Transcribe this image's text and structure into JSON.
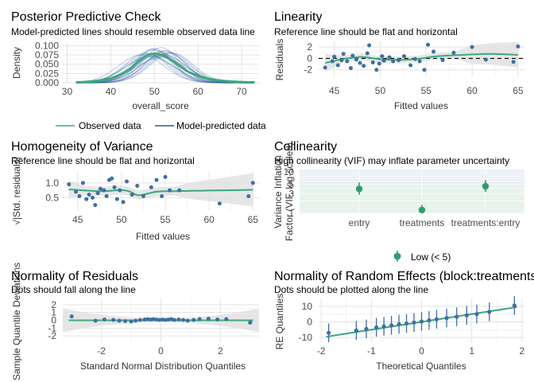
{
  "colors": {
    "observed": "#3aaa7c",
    "predicted": "#2c5aa0",
    "points": "#3f6f9f",
    "band": "#e0e0e0",
    "grid": "#ececec",
    "collin_bg": "#e7f3ec",
    "collin_low": "#2f9e6d"
  },
  "chart_data": [
    {
      "id": "ppc",
      "type": "line",
      "title": "Posterior Predictive Check",
      "subtitle": "Model-predicted lines should resemble observed data line",
      "xlabel": "overall_score",
      "ylabel": "Density",
      "xlim": [
        29,
        74
      ],
      "ylim": [
        0,
        0.105
      ],
      "xticks": [
        30,
        40,
        50,
        60,
        70
      ],
      "yticks": [
        0,
        0.025,
        0.05,
        0.075,
        0.1
      ],
      "ytick_labels": [
        "0.000",
        "0.025",
        "0.050",
        "0.075",
        "0.100"
      ],
      "legend": [
        "Observed data",
        "Model-predicted data"
      ],
      "observed": {
        "x": [
          32,
          36,
          40,
          44,
          46,
          48,
          50,
          52,
          54,
          56,
          58,
          62,
          66,
          70,
          73
        ],
        "y": [
          0.001,
          0.004,
          0.012,
          0.034,
          0.054,
          0.072,
          0.078,
          0.073,
          0.06,
          0.044,
          0.028,
          0.012,
          0.005,
          0.002,
          0.001
        ]
      },
      "predicted_means": [
        47,
        48,
        49,
        50,
        51,
        51.5,
        52,
        52.5,
        53,
        50.5,
        49.5,
        51,
        52,
        53.5,
        48.5,
        50,
        51.5,
        52.5,
        49,
        54
      ],
      "predicted_sd": [
        5.2,
        4.8,
        5.6,
        4.5,
        5.0,
        4.2,
        5.3,
        4.6,
        4.9,
        5.5,
        4.4,
        4.7,
        5.1,
        4.8,
        5.0,
        4.3,
        5.8,
        4.6,
        5.4,
        4.9
      ],
      "predicted_peak": [
        0.075,
        0.08,
        0.07,
        0.088,
        0.078,
        0.095,
        0.074,
        0.085,
        0.08,
        0.072,
        0.09,
        0.083,
        0.077,
        0.081,
        0.078,
        0.092,
        0.068,
        0.086,
        0.073,
        0.08
      ]
    },
    {
      "id": "linearity",
      "type": "scatter",
      "title": "Linearity",
      "subtitle": "Reference line should be flat and horizontal",
      "xlabel": "Fitted values",
      "ylabel": "Residuals",
      "xlim": [
        43.3,
        65.7
      ],
      "ylim": [
        -3.3,
        3
      ],
      "xticks": [
        45,
        50,
        55,
        60,
        65
      ],
      "yticks": [
        -2,
        0,
        2
      ],
      "points": [
        [
          44,
          -1.6
        ],
        [
          44.8,
          -0.5
        ],
        [
          45,
          0.3
        ],
        [
          45.4,
          -1.2
        ],
        [
          45.8,
          -0.3
        ],
        [
          46,
          0.8
        ],
        [
          46.4,
          -0.5
        ],
        [
          46.8,
          -1.7
        ],
        [
          47,
          0.5
        ],
        [
          47.4,
          -0.2
        ],
        [
          47.8,
          -0.8
        ],
        [
          48.2,
          -1.3
        ],
        [
          48.6,
          0.9
        ],
        [
          48.8,
          2.3
        ],
        [
          49.2,
          -0.7
        ],
        [
          49.6,
          -2.0
        ],
        [
          49.9,
          -0.9
        ],
        [
          50.2,
          0.4
        ],
        [
          50.4,
          -0.4
        ],
        [
          51,
          0.2
        ],
        [
          51.4,
          -0.5
        ],
        [
          52,
          -0.3
        ],
        [
          52.6,
          0.4
        ],
        [
          53.3,
          -1.2
        ],
        [
          53.8,
          -0.1
        ],
        [
          54.3,
          -0.5
        ],
        [
          54.8,
          -2.0
        ],
        [
          55.2,
          2.4
        ],
        [
          55.8,
          1.2
        ],
        [
          56.8,
          -0.3
        ],
        [
          58,
          1.0
        ],
        [
          60,
          2.0
        ],
        [
          61.5,
          -0.2
        ],
        [
          64.5,
          -0.6
        ],
        [
          65,
          2.1
        ]
      ],
      "smooth": {
        "x": [
          44,
          46,
          48,
          50,
          52,
          54,
          56,
          58,
          60,
          62,
          64,
          65
        ],
        "y": [
          -0.8,
          -0.1,
          0.25,
          -0.15,
          -0.25,
          -0.1,
          0.35,
          0.55,
          0.7,
          0.8,
          0.7,
          0.6
        ]
      }
    },
    {
      "id": "homogeneity",
      "type": "scatter",
      "title": "Homogeneity of Variance",
      "subtitle": "Reference line should be flat and horizontal",
      "xlabel": "Fitted values",
      "ylabel": "√|Std. residuals|",
      "xlim": [
        43.3,
        65.7
      ],
      "ylim": [
        0.05,
        1.4
      ],
      "xticks": [
        45,
        50,
        55,
        60,
        65
      ],
      "yticks": [
        0.5,
        1.0
      ],
      "ytick_labels": [
        "0.5",
        "1.0"
      ],
      "points": [
        [
          44,
          0.95
        ],
        [
          44.8,
          0.7
        ],
        [
          45.2,
          0.55
        ],
        [
          45.6,
          1.0
        ],
        [
          46,
          0.45
        ],
        [
          46.3,
          0.6
        ],
        [
          46.7,
          0.5
        ],
        [
          47,
          0.25
        ],
        [
          47.3,
          0.65
        ],
        [
          47.6,
          0.8
        ],
        [
          48,
          0.75
        ],
        [
          48.3,
          0.55
        ],
        [
          48.6,
          1.1
        ],
        [
          48.9,
          1.15
        ],
        [
          49.2,
          0.85
        ],
        [
          49.5,
          0.45
        ],
        [
          49.8,
          0.75
        ],
        [
          50.2,
          0.35
        ],
        [
          50.6,
          1.05
        ],
        [
          51.2,
          0.6
        ],
        [
          51.8,
          0.9
        ],
        [
          52.5,
          0.55
        ],
        [
          53.4,
          0.85
        ],
        [
          54,
          1.1
        ],
        [
          54.6,
          0.55
        ],
        [
          55,
          1.2
        ],
        [
          55.5,
          0.75
        ],
        [
          56.6,
          0.75
        ],
        [
          61.2,
          0.3
        ],
        [
          64.5,
          0.55
        ],
        [
          65,
          1.0
        ]
      ],
      "smooth": {
        "x": [
          44,
          46,
          48,
          50,
          51,
          52,
          54,
          56,
          58,
          60,
          62,
          64,
          65
        ],
        "y": [
          0.78,
          0.74,
          0.72,
          0.76,
          0.7,
          0.58,
          0.7,
          0.72,
          0.73,
          0.74,
          0.75,
          0.76,
          0.77
        ]
      }
    },
    {
      "id": "collinearity",
      "type": "scatter",
      "title": "Collinearity",
      "subtitle": "High collinearity (VIF) may inflate parameter uncertainty",
      "ylabel_line1": "Variance Inflation",
      "ylabel_line2": "Factor (VIF, log-scaled)",
      "categories": [
        "entry",
        "treatments",
        "treatments:entry"
      ],
      "vif": [
        3.9,
        1.2,
        4.5
      ],
      "ci_low": [
        2.8,
        1.0,
        3.3
      ],
      "ci_high": [
        5.6,
        1.6,
        6.4
      ],
      "yticks": [
        1,
        3,
        5,
        10
      ],
      "ylim": [
        1,
        11.5
      ],
      "scale": "log",
      "legend": [
        "Low (< 5)"
      ]
    },
    {
      "id": "normality_residuals",
      "type": "scatter",
      "title": "Normality of Residuals",
      "subtitle": "Dots should fall along the line",
      "xlabel": "Standard Normal Distribution Quantiles",
      "ylabel": "Sample Quantile Deviations",
      "xlim": [
        -3.3,
        3.3
      ],
      "ylim": [
        -2.8,
        2.8
      ],
      "xticks": [
        -2,
        0,
        2
      ],
      "yticks": [
        -2,
        -1,
        0,
        1,
        2
      ],
      "points": [
        [
          -3.0,
          0.5
        ],
        [
          -2.2,
          -0.05
        ],
        [
          -1.9,
          0.1
        ],
        [
          -1.6,
          0.05
        ],
        [
          -1.4,
          -0.05
        ],
        [
          -1.2,
          -0.1
        ],
        [
          -1.0,
          -0.15
        ],
        [
          -0.85,
          -0.05
        ],
        [
          -0.7,
          0.05
        ],
        [
          -0.55,
          0.1
        ],
        [
          -0.45,
          0.15
        ],
        [
          -0.35,
          0.1
        ],
        [
          -0.25,
          0.15
        ],
        [
          -0.15,
          0.1
        ],
        [
          -0.05,
          0.05
        ],
        [
          0.05,
          0.1
        ],
        [
          0.15,
          0.05
        ],
        [
          0.25,
          0.1
        ],
        [
          0.35,
          0.15
        ],
        [
          0.45,
          0.05
        ],
        [
          0.6,
          0.1
        ],
        [
          0.75,
          0.05
        ],
        [
          0.9,
          -0.05
        ],
        [
          1.1,
          0.05
        ],
        [
          1.3,
          0.15
        ],
        [
          1.6,
          0.2
        ],
        [
          1.9,
          0.1
        ],
        [
          2.2,
          0.15
        ],
        [
          3.0,
          -0.3
        ]
      ]
    },
    {
      "id": "normality_random",
      "type": "scatter",
      "title": "Normality of Random Effects (block:treatments)",
      "subtitle": "Dots should be plotted along the line",
      "xlabel": "Theoretical Quantiles",
      "ylabel": "RE Quantiles",
      "xlim": [
        -2.05,
        2.05
      ],
      "ylim": [
        -13,
        15
      ],
      "xticks": [
        -2,
        -1,
        0,
        1,
        2
      ],
      "yticks": [
        -10,
        0,
        10
      ],
      "points": [
        [
          -1.85,
          -7
        ],
        [
          -1.3,
          -5.5
        ],
        [
          -1.1,
          -4.5
        ],
        [
          -0.9,
          -3.5
        ],
        [
          -0.75,
          -2.8
        ],
        [
          -0.6,
          -2.2
        ],
        [
          -0.45,
          -1.5
        ],
        [
          -0.3,
          -1
        ],
        [
          -0.15,
          -0.4
        ],
        [
          0,
          0.3
        ],
        [
          0.15,
          1
        ],
        [
          0.3,
          1.7
        ],
        [
          0.5,
          2.5
        ],
        [
          0.7,
          3.3
        ],
        [
          0.9,
          4.2
        ],
        [
          1.1,
          5
        ],
        [
          1.35,
          6.4
        ],
        [
          1.85,
          10.5
        ]
      ],
      "err": 6,
      "line": {
        "x": [
          -1.9,
          1.9
        ],
        "y": [
          -9.5,
          9.5
        ]
      }
    }
  ]
}
